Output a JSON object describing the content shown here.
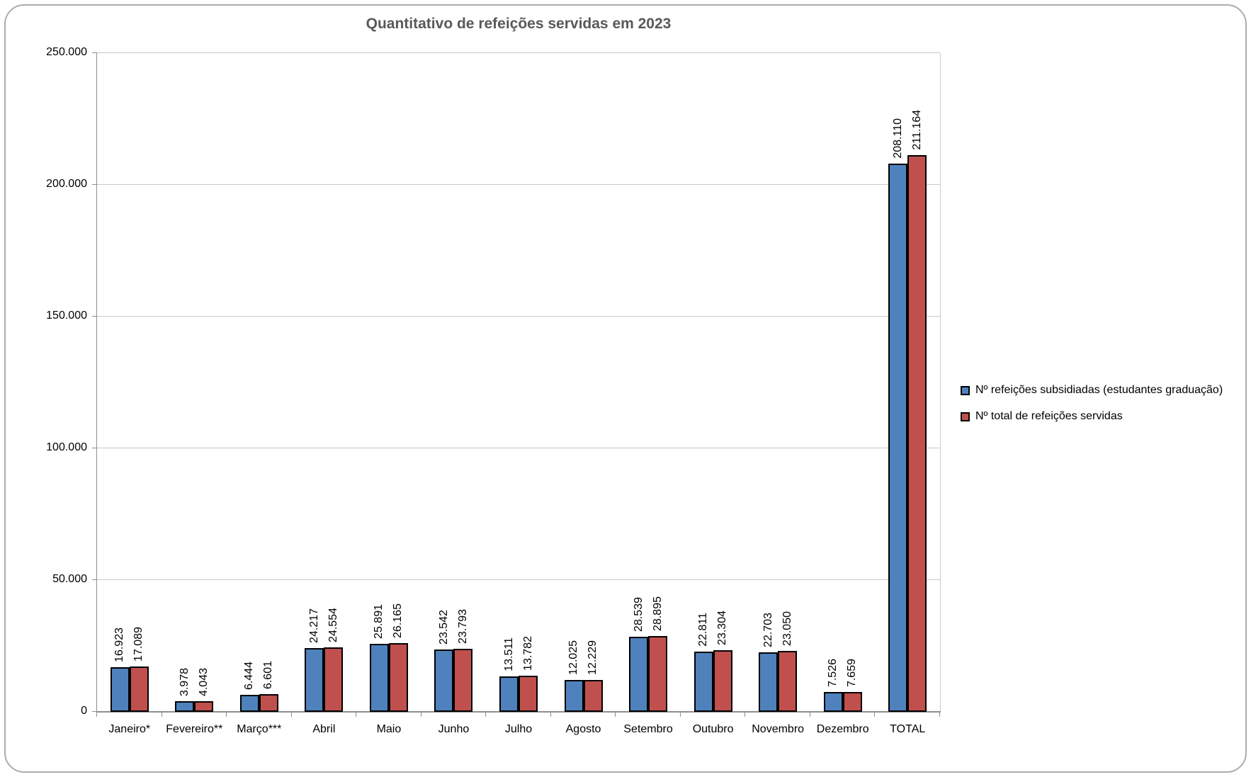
{
  "chart_data": {
    "type": "bar",
    "title": "Quantitativo de refeições servidas em 2023",
    "xlabel": "",
    "ylabel": "",
    "categories": [
      "Janeiro*",
      "Fevereiro**",
      "Março***",
      "Abril",
      "Maio",
      "Junho",
      "Julho",
      "Agosto",
      "Setembro",
      "Outubro",
      "Novembro",
      "Dezembro",
      "TOTAL"
    ],
    "series": [
      {
        "name": "Nº refeições subsidiadas (estudantes graduação)",
        "color": "#4F81BD",
        "values": [
          16923,
          3978,
          6444,
          24217,
          25891,
          23542,
          13511,
          12025,
          28539,
          22811,
          22703,
          7526,
          208110
        ],
        "labels": [
          "16.923",
          "3.978",
          "6.444",
          "24.217",
          "25.891",
          "23.542",
          "13.511",
          "12.025",
          "28.539",
          "22.811",
          "22.703",
          "7.526",
          "208.110"
        ]
      },
      {
        "name": "Nº total de refeições servidas",
        "color": "#C0504D",
        "values": [
          17089,
          4043,
          6601,
          24554,
          26165,
          23793,
          13782,
          12229,
          28895,
          23304,
          23050,
          7659,
          211164
        ],
        "labels": [
          "17.089",
          "4.043",
          "6.601",
          "24.554",
          "26.165",
          "23.793",
          "13.782",
          "12.229",
          "28.895",
          "23.304",
          "23.050",
          "7.659",
          "211.164"
        ]
      }
    ],
    "y_ticks": [
      "0",
      "50.000",
      "100.000",
      "150.000",
      "200.000",
      "250.000"
    ],
    "ylim": [
      0,
      250000
    ],
    "grid": true,
    "legend_position": "right",
    "data_label_rotation": 90,
    "bar_border_color": "#000000"
  }
}
